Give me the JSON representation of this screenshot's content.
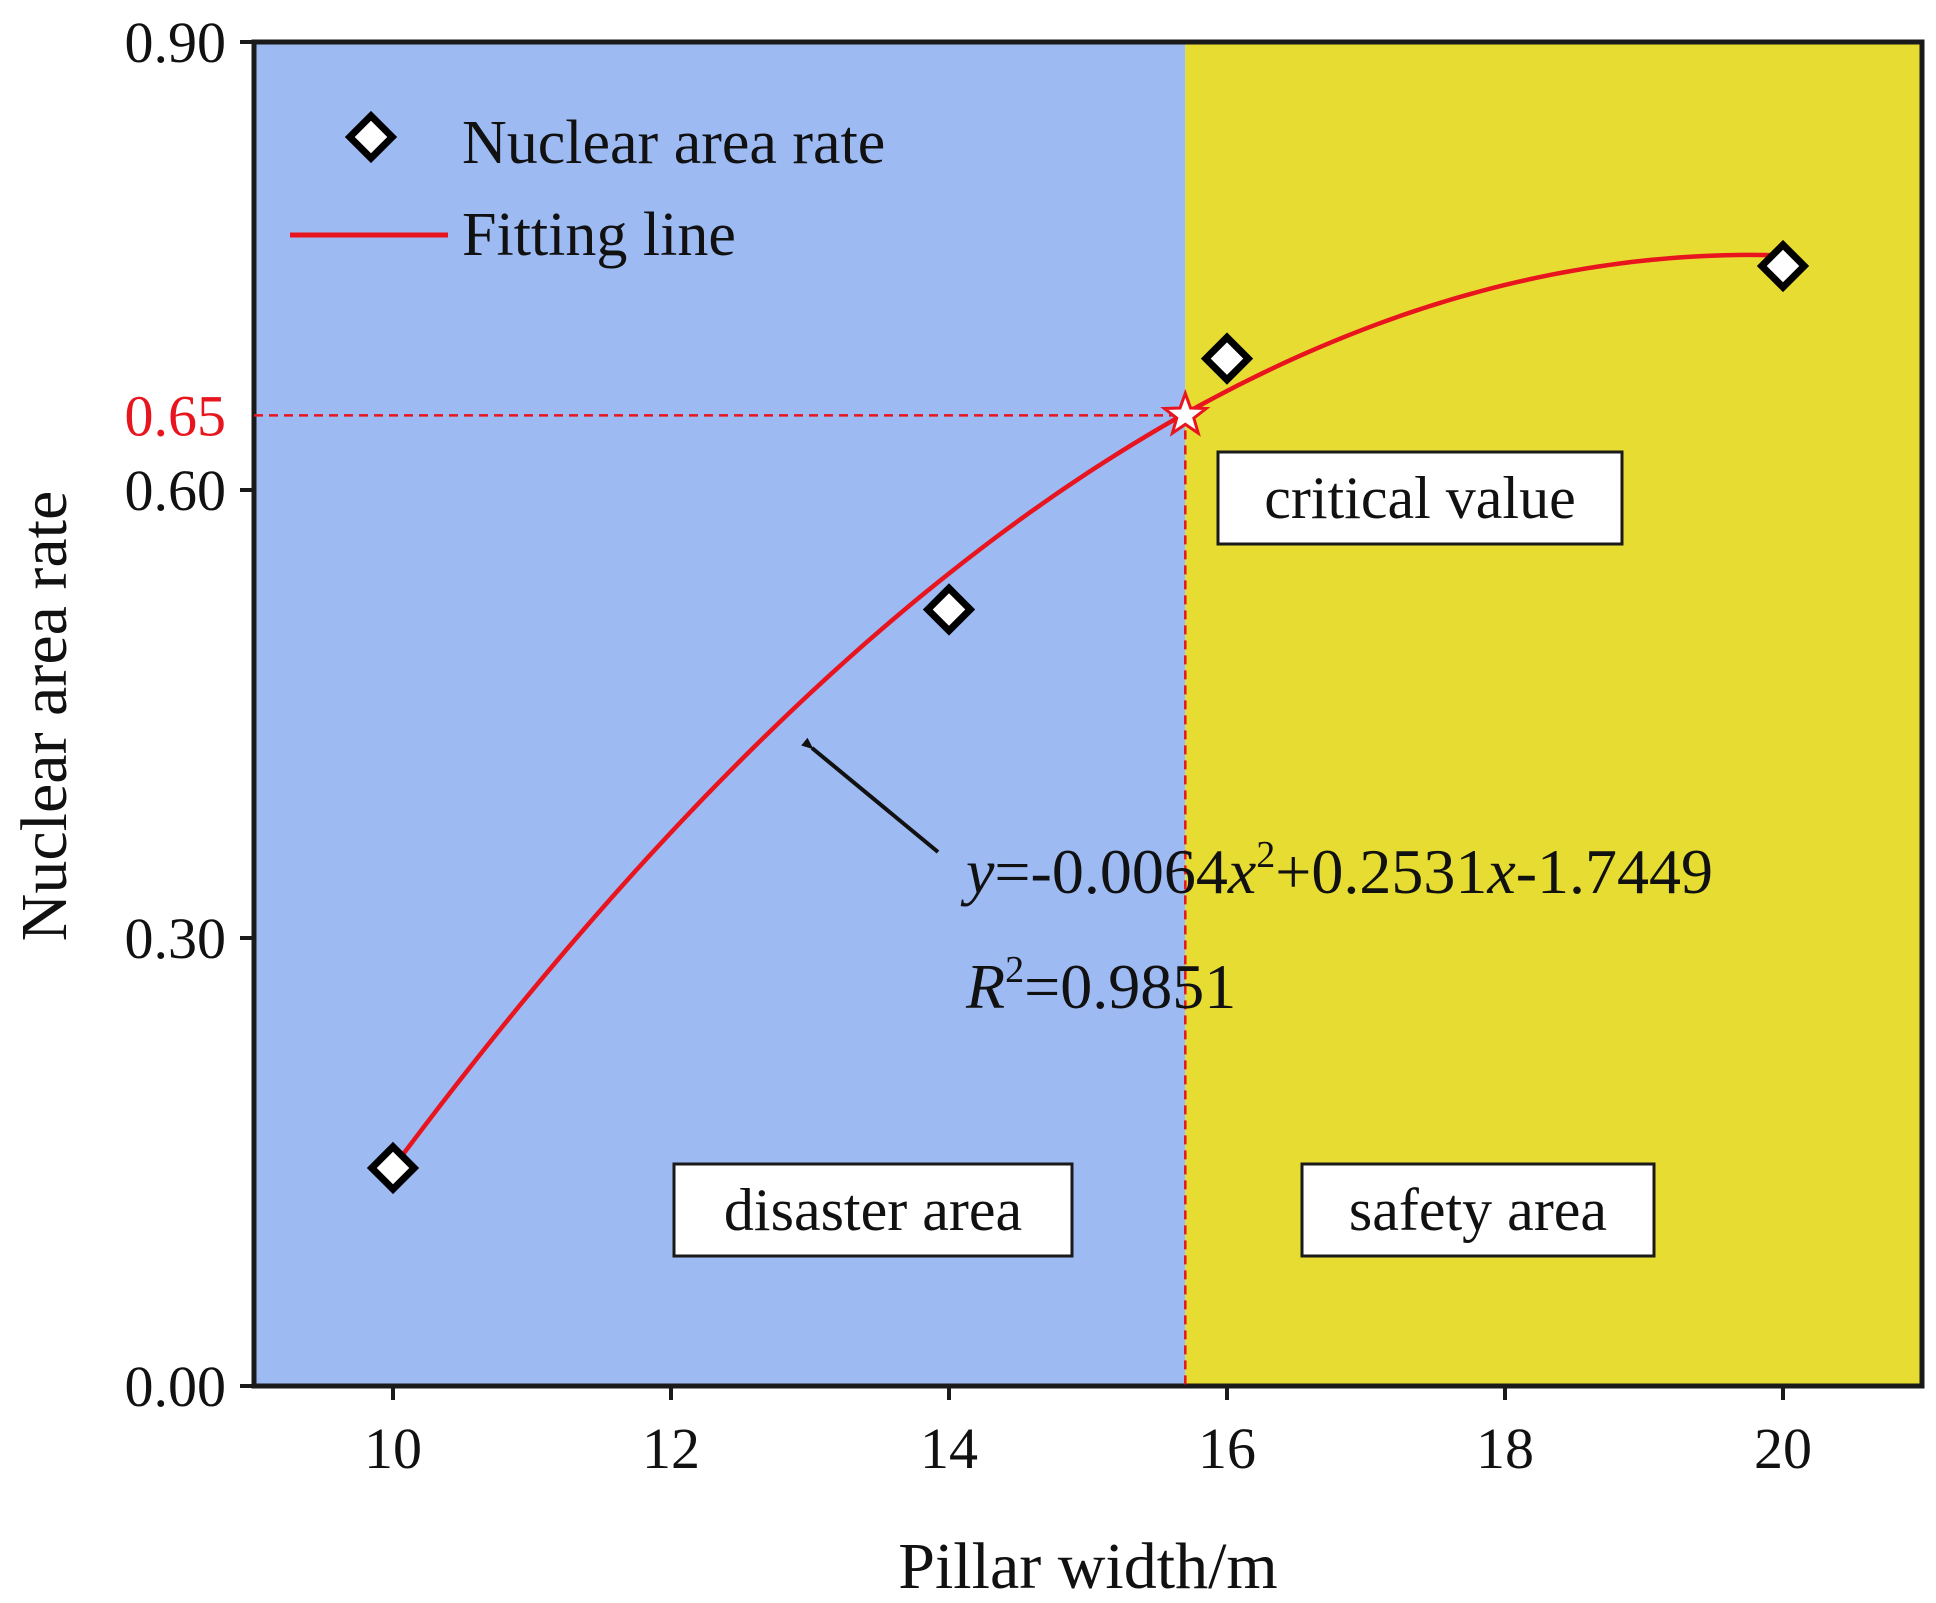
{
  "chart_data": {
    "type": "scatter",
    "xlabel": "Pillar width/m",
    "ylabel": "Nuclear area rate",
    "xlim": [
      9,
      21
    ],
    "ylim": [
      0.0,
      0.9
    ],
    "x_ticks": [
      "10",
      "12",
      "14",
      "16",
      "18",
      "20"
    ],
    "y_ticks": [
      "0.00",
      "0.30",
      "0.60",
      "0.90"
    ],
    "highlight_tick": "0.65",
    "highlight_value": 0.65,
    "series": [
      {
        "name": "Nuclear area rate",
        "kind": "scatter",
        "marker": "diamond",
        "points": [
          {
            "x": 10,
            "y": 0.146
          },
          {
            "x": 14,
            "y": 0.52
          },
          {
            "x": 16,
            "y": 0.688
          },
          {
            "x": 20,
            "y": 0.75
          }
        ]
      },
      {
        "name": "Fitting line",
        "kind": "line",
        "color": "#e8141e",
        "x_range": [
          10,
          20
        ],
        "coefficients": {
          "a": -0.0064,
          "b": 0.2531,
          "c": -1.7449
        }
      }
    ],
    "critical_point": {
      "x": 15.7,
      "y": 0.65,
      "marker": "star"
    },
    "regions": [
      {
        "label": "disaster area",
        "x_range": [
          9,
          15.7
        ],
        "color": "#9dbaf3"
      },
      {
        "label": "safety area",
        "x_range": [
          15.7,
          21
        ],
        "color": "#e6dc32"
      }
    ],
    "annotations": {
      "critical": "critical value",
      "equation": {
        "y": "y",
        "eq1": "=-0.0064",
        "x1": "x",
        "sup2a": "2",
        "eq2": "+0.2531",
        "x2": "x",
        "eq3": "-1.7449",
        "R": "R",
        "sup2b": "2",
        "r2": "=0.9851"
      }
    },
    "colors": {
      "fit": "#e8141e",
      "highlight": "#e8141e",
      "arrow": "#111111",
      "axis": "#1a1a1a"
    }
  }
}
